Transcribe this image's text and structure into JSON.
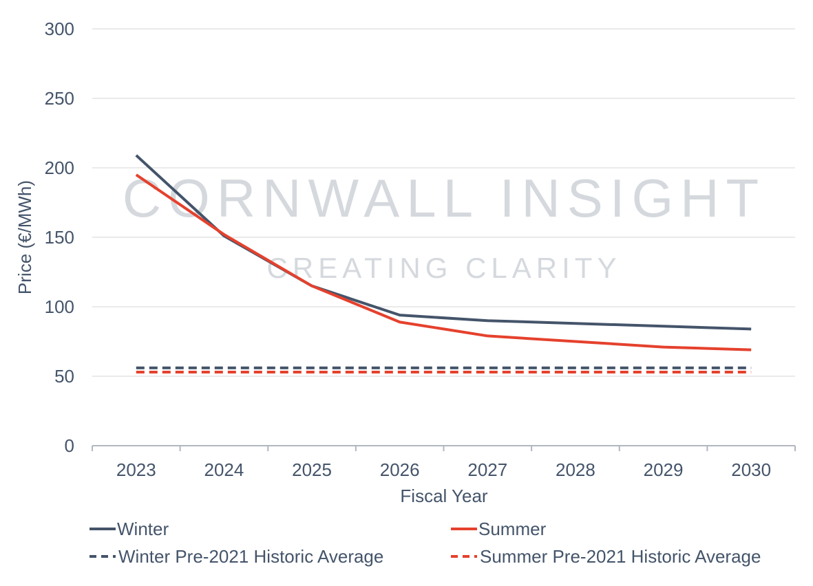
{
  "chart_data": {
    "type": "line",
    "title": "",
    "xlabel": "Fiscal Year",
    "ylabel": "Price (€/MWh)",
    "ylim": [
      0,
      300
    ],
    "yticks": [
      0,
      50,
      100,
      150,
      200,
      250,
      300
    ],
    "categories": [
      "2023",
      "2024",
      "2025",
      "2026",
      "2027",
      "2028",
      "2029",
      "2030"
    ],
    "grid": true,
    "legend_position": "bottom",
    "series": [
      {
        "name": "Winter",
        "color": "#44546a",
        "dash": false,
        "values": [
          209,
          151,
          115,
          94,
          90,
          88,
          86,
          84
        ]
      },
      {
        "name": "Summer",
        "color": "#e5412d",
        "dash": false,
        "values": [
          195,
          152,
          115,
          89,
          79,
          75,
          71,
          69
        ]
      },
      {
        "name": "Winter Pre-2021 Historic Average",
        "color": "#44546a",
        "dash": true,
        "values": [
          56,
          56,
          56,
          56,
          56,
          56,
          56,
          56
        ]
      },
      {
        "name": "Summer Pre-2021 Historic Average",
        "color": "#e5412d",
        "dash": true,
        "values": [
          53,
          53,
          53,
          53,
          53,
          53,
          53,
          53
        ]
      }
    ],
    "watermark": {
      "line1": "CORNWALL INSIGHT",
      "line2": "CREATING CLARITY"
    }
  }
}
